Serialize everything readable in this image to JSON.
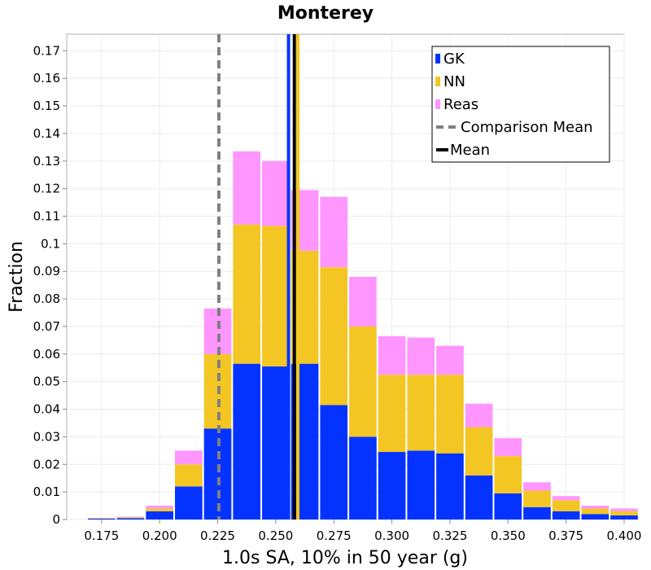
{
  "chart_data": {
    "type": "bar",
    "stacked": true,
    "title": "Monterey",
    "xlabel": "1.0s SA, 10% in 50 year (g)",
    "ylabel": "Fraction",
    "xlim": [
      0.16,
      0.4
    ],
    "ylim": [
      0,
      0.176
    ],
    "x_ticks": [
      "0.175",
      "0.200",
      "0.225",
      "0.250",
      "0.275",
      "0.300",
      "0.325",
      "0.350",
      "0.375",
      "0.400"
    ],
    "y_ticks": [
      "0",
      "0.01",
      "0.02",
      "0.03",
      "0.04",
      "0.05",
      "0.06",
      "0.07",
      "0.08",
      "0.09",
      "0.1",
      "0.11",
      "0.12",
      "0.13",
      "0.14",
      "0.15",
      "0.16",
      "0.17"
    ],
    "grid": true,
    "legend_position": "top-right",
    "bin_width": 0.0125,
    "bin_centers": [
      0.1625,
      0.175,
      0.1875,
      0.2,
      0.2125,
      0.225,
      0.2375,
      0.25,
      0.2625,
      0.275,
      0.2875,
      0.3,
      0.3125,
      0.325,
      0.3375,
      0.35,
      0.3625,
      0.375,
      0.3875,
      0.4
    ],
    "series": [
      {
        "name": "GK",
        "color": "#0433ff",
        "values": [
          0,
          0.0003,
          0.0005,
          0.003,
          0.012,
          0.033,
          0.0565,
          0.0555,
          0.0565,
          0.0415,
          0.03,
          0.0245,
          0.025,
          0.024,
          0.016,
          0.0095,
          0.0045,
          0.003,
          0.002,
          0.0015
        ]
      },
      {
        "name": "NN",
        "color": "#f3c623",
        "values": [
          0,
          0.0002,
          0.0003,
          0.001,
          0.008,
          0.027,
          0.0505,
          0.051,
          0.041,
          0.05,
          0.04,
          0.028,
          0.0275,
          0.0285,
          0.0175,
          0.0135,
          0.006,
          0.004,
          0.002,
          0.0015
        ]
      },
      {
        "name": "Reas",
        "color": "#ff95ff",
        "values": [
          0,
          0.0001,
          0.0002,
          0.001,
          0.005,
          0.0165,
          0.0265,
          0.0235,
          0.022,
          0.0255,
          0.018,
          0.014,
          0.0135,
          0.0105,
          0.0085,
          0.0065,
          0.003,
          0.0015,
          0.001,
          0.001
        ]
      }
    ],
    "vlines": [
      {
        "name": "Comparison Mean",
        "x": 0.2255,
        "color": "#808080",
        "style": "dashed"
      },
      {
        "name": "GK mean",
        "x": 0.2555,
        "color": "#0433ff",
        "style": "solid"
      },
      {
        "name": "NN mean",
        "x": 0.2595,
        "color": "#f3c623",
        "style": "solid"
      },
      {
        "name": "Mean",
        "x": 0.258,
        "color": "#000000",
        "style": "solid"
      }
    ],
    "legend": [
      {
        "label": "GK",
        "kind": "swatch",
        "color": "#0433ff"
      },
      {
        "label": "NN",
        "kind": "swatch",
        "color": "#f3c623"
      },
      {
        "label": "Reas",
        "kind": "swatch",
        "color": "#ff95ff"
      },
      {
        "label": "Comparison Mean",
        "kind": "dashed",
        "color": "#808080"
      },
      {
        "label": "Mean",
        "kind": "line",
        "color": "#000000"
      }
    ]
  }
}
